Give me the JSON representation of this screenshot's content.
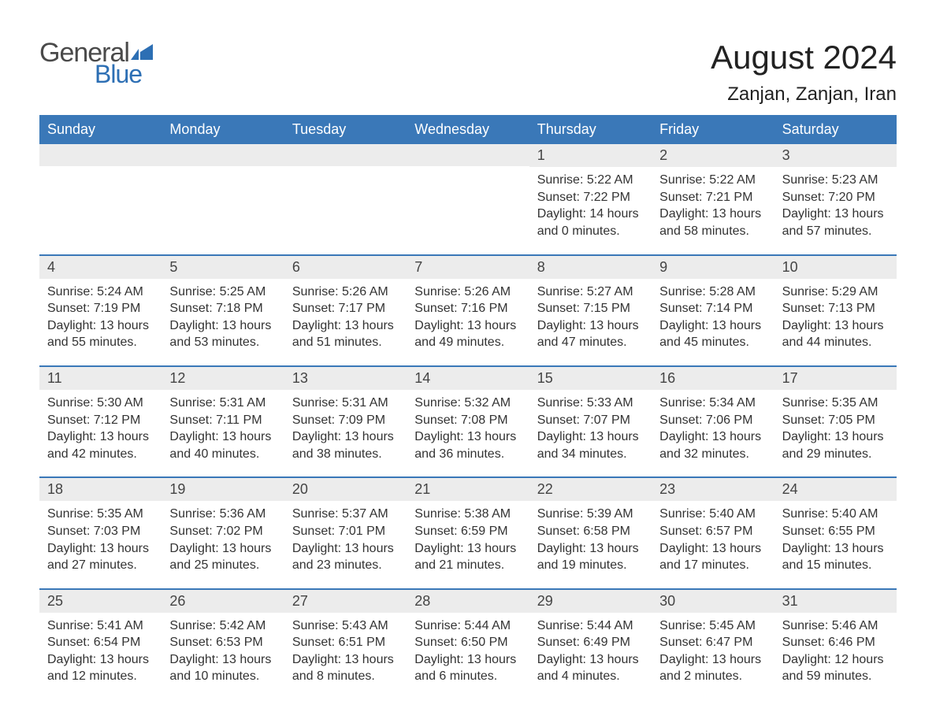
{
  "logo": {
    "text_general": "General",
    "text_blue": "Blue",
    "brand_color": "#2d6fb4",
    "text_color": "#4a4a4a"
  },
  "title": "August 2024",
  "location": "Zanjan, Zanjan, Iran",
  "colors": {
    "header_bg": "#3a78b8",
    "header_text": "#ffffff",
    "daynum_bg": "#ececec",
    "week_divider": "#3a78b8",
    "body_text": "#333333",
    "page_bg": "#ffffff"
  },
  "typography": {
    "title_fontsize": 42,
    "location_fontsize": 24,
    "weekday_fontsize": 18,
    "daynum_fontsize": 18,
    "daydata_fontsize": 16,
    "font_family": "Arial, Helvetica, sans-serif"
  },
  "layout": {
    "columns": 7,
    "column_width_equal": true
  },
  "weekdays": [
    "Sunday",
    "Monday",
    "Tuesday",
    "Wednesday",
    "Thursday",
    "Friday",
    "Saturday"
  ],
  "weeks": [
    [
      {
        "empty": true
      },
      {
        "empty": true
      },
      {
        "empty": true
      },
      {
        "empty": true
      },
      {
        "day": "1",
        "sunrise": "Sunrise: 5:22 AM",
        "sunset": "Sunset: 7:22 PM",
        "daylight1": "Daylight: 14 hours",
        "daylight2": "and 0 minutes."
      },
      {
        "day": "2",
        "sunrise": "Sunrise: 5:22 AM",
        "sunset": "Sunset: 7:21 PM",
        "daylight1": "Daylight: 13 hours",
        "daylight2": "and 58 minutes."
      },
      {
        "day": "3",
        "sunrise": "Sunrise: 5:23 AM",
        "sunset": "Sunset: 7:20 PM",
        "daylight1": "Daylight: 13 hours",
        "daylight2": "and 57 minutes."
      }
    ],
    [
      {
        "day": "4",
        "sunrise": "Sunrise: 5:24 AM",
        "sunset": "Sunset: 7:19 PM",
        "daylight1": "Daylight: 13 hours",
        "daylight2": "and 55 minutes."
      },
      {
        "day": "5",
        "sunrise": "Sunrise: 5:25 AM",
        "sunset": "Sunset: 7:18 PM",
        "daylight1": "Daylight: 13 hours",
        "daylight2": "and 53 minutes."
      },
      {
        "day": "6",
        "sunrise": "Sunrise: 5:26 AM",
        "sunset": "Sunset: 7:17 PM",
        "daylight1": "Daylight: 13 hours",
        "daylight2": "and 51 minutes."
      },
      {
        "day": "7",
        "sunrise": "Sunrise: 5:26 AM",
        "sunset": "Sunset: 7:16 PM",
        "daylight1": "Daylight: 13 hours",
        "daylight2": "and 49 minutes."
      },
      {
        "day": "8",
        "sunrise": "Sunrise: 5:27 AM",
        "sunset": "Sunset: 7:15 PM",
        "daylight1": "Daylight: 13 hours",
        "daylight2": "and 47 minutes."
      },
      {
        "day": "9",
        "sunrise": "Sunrise: 5:28 AM",
        "sunset": "Sunset: 7:14 PM",
        "daylight1": "Daylight: 13 hours",
        "daylight2": "and 45 minutes."
      },
      {
        "day": "10",
        "sunrise": "Sunrise: 5:29 AM",
        "sunset": "Sunset: 7:13 PM",
        "daylight1": "Daylight: 13 hours",
        "daylight2": "and 44 minutes."
      }
    ],
    [
      {
        "day": "11",
        "sunrise": "Sunrise: 5:30 AM",
        "sunset": "Sunset: 7:12 PM",
        "daylight1": "Daylight: 13 hours",
        "daylight2": "and 42 minutes."
      },
      {
        "day": "12",
        "sunrise": "Sunrise: 5:31 AM",
        "sunset": "Sunset: 7:11 PM",
        "daylight1": "Daylight: 13 hours",
        "daylight2": "and 40 minutes."
      },
      {
        "day": "13",
        "sunrise": "Sunrise: 5:31 AM",
        "sunset": "Sunset: 7:09 PM",
        "daylight1": "Daylight: 13 hours",
        "daylight2": "and 38 minutes."
      },
      {
        "day": "14",
        "sunrise": "Sunrise: 5:32 AM",
        "sunset": "Sunset: 7:08 PM",
        "daylight1": "Daylight: 13 hours",
        "daylight2": "and 36 minutes."
      },
      {
        "day": "15",
        "sunrise": "Sunrise: 5:33 AM",
        "sunset": "Sunset: 7:07 PM",
        "daylight1": "Daylight: 13 hours",
        "daylight2": "and 34 minutes."
      },
      {
        "day": "16",
        "sunrise": "Sunrise: 5:34 AM",
        "sunset": "Sunset: 7:06 PM",
        "daylight1": "Daylight: 13 hours",
        "daylight2": "and 32 minutes."
      },
      {
        "day": "17",
        "sunrise": "Sunrise: 5:35 AM",
        "sunset": "Sunset: 7:05 PM",
        "daylight1": "Daylight: 13 hours",
        "daylight2": "and 29 minutes."
      }
    ],
    [
      {
        "day": "18",
        "sunrise": "Sunrise: 5:35 AM",
        "sunset": "Sunset: 7:03 PM",
        "daylight1": "Daylight: 13 hours",
        "daylight2": "and 27 minutes."
      },
      {
        "day": "19",
        "sunrise": "Sunrise: 5:36 AM",
        "sunset": "Sunset: 7:02 PM",
        "daylight1": "Daylight: 13 hours",
        "daylight2": "and 25 minutes."
      },
      {
        "day": "20",
        "sunrise": "Sunrise: 5:37 AM",
        "sunset": "Sunset: 7:01 PM",
        "daylight1": "Daylight: 13 hours",
        "daylight2": "and 23 minutes."
      },
      {
        "day": "21",
        "sunrise": "Sunrise: 5:38 AM",
        "sunset": "Sunset: 6:59 PM",
        "daylight1": "Daylight: 13 hours",
        "daylight2": "and 21 minutes."
      },
      {
        "day": "22",
        "sunrise": "Sunrise: 5:39 AM",
        "sunset": "Sunset: 6:58 PM",
        "daylight1": "Daylight: 13 hours",
        "daylight2": "and 19 minutes."
      },
      {
        "day": "23",
        "sunrise": "Sunrise: 5:40 AM",
        "sunset": "Sunset: 6:57 PM",
        "daylight1": "Daylight: 13 hours",
        "daylight2": "and 17 minutes."
      },
      {
        "day": "24",
        "sunrise": "Sunrise: 5:40 AM",
        "sunset": "Sunset: 6:55 PM",
        "daylight1": "Daylight: 13 hours",
        "daylight2": "and 15 minutes."
      }
    ],
    [
      {
        "day": "25",
        "sunrise": "Sunrise: 5:41 AM",
        "sunset": "Sunset: 6:54 PM",
        "daylight1": "Daylight: 13 hours",
        "daylight2": "and 12 minutes."
      },
      {
        "day": "26",
        "sunrise": "Sunrise: 5:42 AM",
        "sunset": "Sunset: 6:53 PM",
        "daylight1": "Daylight: 13 hours",
        "daylight2": "and 10 minutes."
      },
      {
        "day": "27",
        "sunrise": "Sunrise: 5:43 AM",
        "sunset": "Sunset: 6:51 PM",
        "daylight1": "Daylight: 13 hours",
        "daylight2": "and 8 minutes."
      },
      {
        "day": "28",
        "sunrise": "Sunrise: 5:44 AM",
        "sunset": "Sunset: 6:50 PM",
        "daylight1": "Daylight: 13 hours",
        "daylight2": "and 6 minutes."
      },
      {
        "day": "29",
        "sunrise": "Sunrise: 5:44 AM",
        "sunset": "Sunset: 6:49 PM",
        "daylight1": "Daylight: 13 hours",
        "daylight2": "and 4 minutes."
      },
      {
        "day": "30",
        "sunrise": "Sunrise: 5:45 AM",
        "sunset": "Sunset: 6:47 PM",
        "daylight1": "Daylight: 13 hours",
        "daylight2": "and 2 minutes."
      },
      {
        "day": "31",
        "sunrise": "Sunrise: 5:46 AM",
        "sunset": "Sunset: 6:46 PM",
        "daylight1": "Daylight: 12 hours",
        "daylight2": "and 59 minutes."
      }
    ]
  ]
}
